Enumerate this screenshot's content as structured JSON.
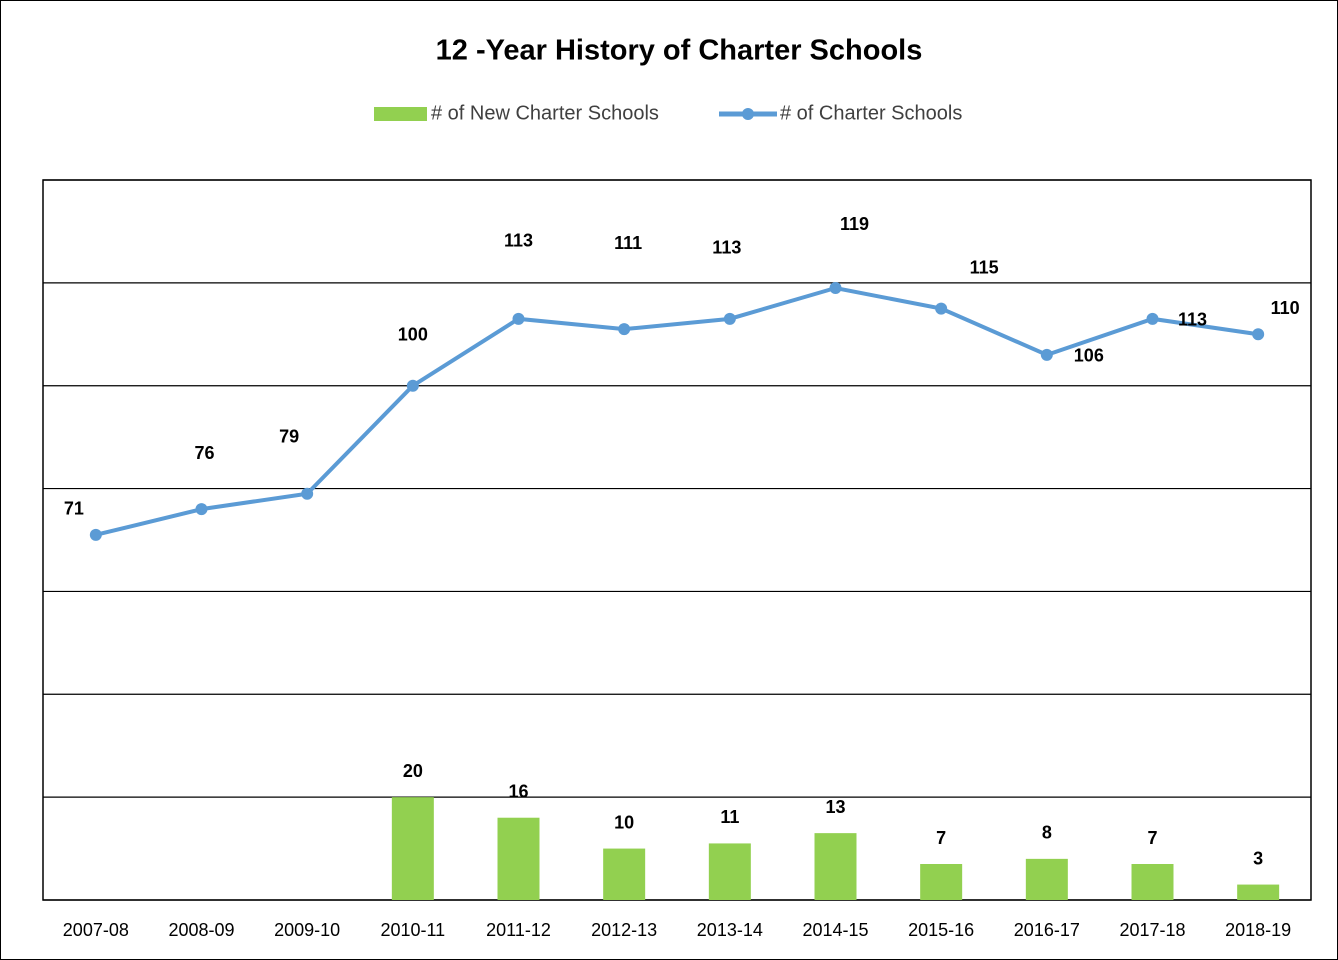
{
  "chart_data": {
    "type": "bar+line",
    "title": "12 -Year History of Charter Schools",
    "categories": [
      "2007-08",
      "2008-09",
      "2009-10",
      "2010-11",
      "2011-12",
      "2012-13",
      "2013-14",
      "2014-15",
      "2015-16",
      "2016-17",
      "2017-18",
      "2018-19"
    ],
    "series": [
      {
        "name": "# of New Charter Schools",
        "type": "bar",
        "color": "#92d050",
        "values": [
          null,
          null,
          null,
          20,
          16,
          10,
          11,
          13,
          7,
          8,
          7,
          3
        ]
      },
      {
        "name": "# of Charter Schools",
        "type": "line",
        "color": "#5b9bd5",
        "values": [
          71,
          76,
          79,
          100,
          113,
          111,
          113,
          119,
          115,
          106,
          113,
          110
        ]
      }
    ],
    "ylim": [
      0,
      140
    ],
    "yticks": [
      0,
      20,
      40,
      60,
      80,
      100,
      120,
      140
    ],
    "grid": true,
    "legend": "top"
  }
}
